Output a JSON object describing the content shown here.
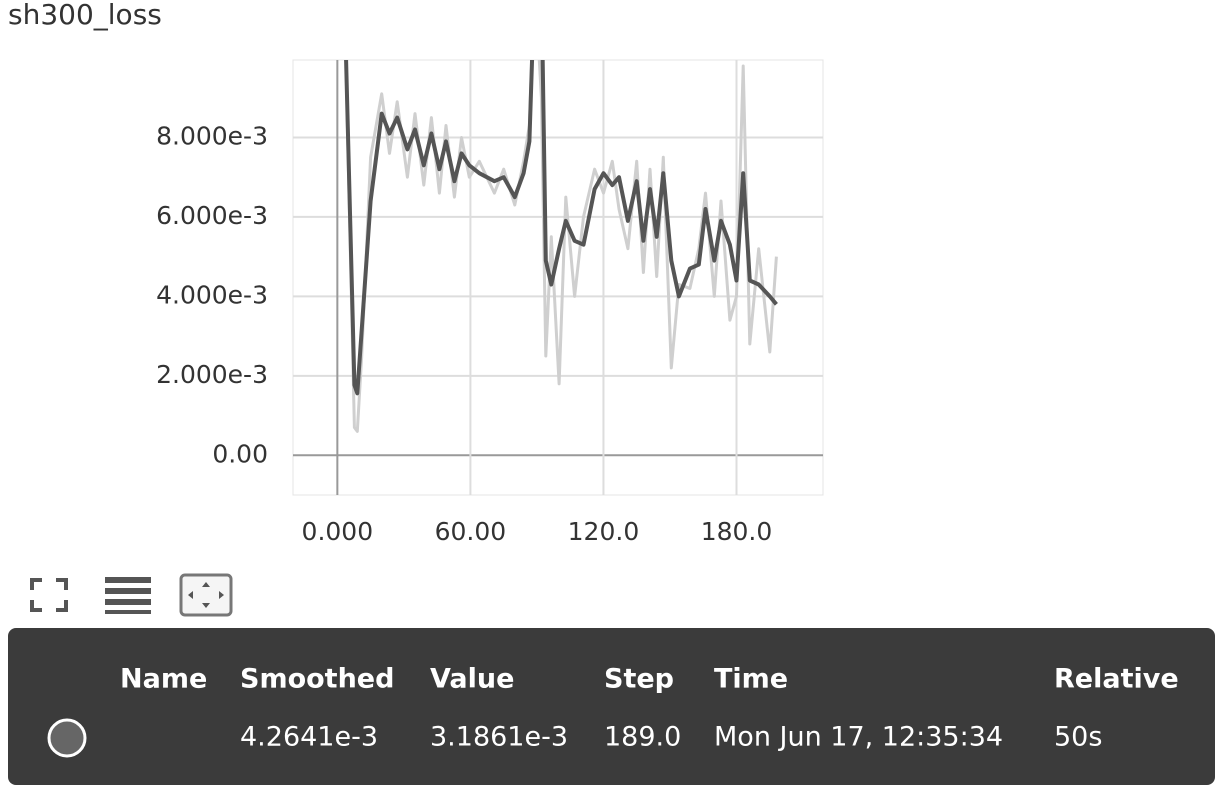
{
  "title": "sh300_loss",
  "chart_data": {
    "type": "line",
    "x": [
      3,
      7.7,
      9,
      11,
      15,
      20,
      23.5,
      27,
      31.6,
      35,
      39,
      42.4,
      46,
      49,
      52.8,
      56,
      59.5,
      64,
      70.8,
      75,
      80,
      84,
      86.6,
      89,
      92,
      94,
      96.5,
      100,
      103,
      107,
      111,
      116,
      120,
      124,
      127,
      131,
      135,
      138,
      141,
      144,
      147,
      150.6,
      154,
      159,
      163,
      166,
      170,
      173,
      177,
      180,
      183,
      186,
      190,
      195,
      198
    ],
    "series": [
      {
        "name": "raw",
        "color": "#cfcfcf",
        "values": [
          0.012,
          0.0007,
          0.0006,
          0.0025,
          0.0075,
          0.0091,
          0.0076,
          0.0089,
          0.007,
          0.0086,
          0.0068,
          0.0085,
          0.0066,
          0.0083,
          0.0065,
          0.008,
          0.007,
          0.0074,
          0.0066,
          0.0072,
          0.0063,
          0.0074,
          0.0083,
          0.012,
          0.009,
          0.0025,
          0.0055,
          0.0018,
          0.0065,
          0.004,
          0.006,
          0.0072,
          0.0066,
          0.0074,
          0.0062,
          0.0052,
          0.0074,
          0.0046,
          0.0072,
          0.0045,
          0.0075,
          0.0022,
          0.0043,
          0.0042,
          0.0052,
          0.0066,
          0.004,
          0.0064,
          0.0034,
          0.004,
          0.0098,
          0.0028,
          0.0052,
          0.0026,
          0.005
        ]
      },
      {
        "name": "smoothed",
        "color": "#555555",
        "values": [
          0.012,
          0.00177,
          0.00156,
          0.00315,
          0.0064,
          0.0086,
          0.0081,
          0.0085,
          0.0077,
          0.0082,
          0.0073,
          0.0081,
          0.0072,
          0.0079,
          0.0069,
          0.0076,
          0.0073,
          0.0071,
          0.0069,
          0.007,
          0.0065,
          0.0071,
          0.0079,
          0.012,
          0.012,
          0.0049,
          0.0043,
          0.0052,
          0.0059,
          0.0054,
          0.0053,
          0.0067,
          0.0071,
          0.0068,
          0.007,
          0.0059,
          0.0069,
          0.0054,
          0.0067,
          0.0055,
          0.0071,
          0.0049,
          0.004,
          0.0047,
          0.0048,
          0.0062,
          0.0049,
          0.0059,
          0.0053,
          0.0044,
          0.0071,
          0.0044,
          0.0043,
          0.004,
          0.0038
        ]
      }
    ],
    "xlim": [
      -20,
      219
    ],
    "ylim": [
      -0.001,
      0.00995
    ],
    "xticks": [
      {
        "value": 0,
        "label": "0.000"
      },
      {
        "value": 60,
        "label": "60.00"
      },
      {
        "value": 120,
        "label": "120.0"
      },
      {
        "value": 180,
        "label": "180.0"
      }
    ],
    "yticks": [
      {
        "value": 0,
        "label": "0.00"
      },
      {
        "value": 0.002,
        "label": "2.000e-3"
      },
      {
        "value": 0.004,
        "label": "4.000e-3"
      },
      {
        "value": 0.006,
        "label": "6.000e-3"
      },
      {
        "value": 0.008,
        "label": "8.000e-3"
      }
    ],
    "grid": true
  },
  "tooltip": {
    "headers": [
      "Name",
      "Smoothed",
      "Value",
      "Step",
      "Time",
      "Relative"
    ],
    "row": [
      "4.2641e-3",
      "3.1861e-3",
      "189.0",
      "Mon Jun 17, 12:35:34",
      "50s"
    ]
  }
}
